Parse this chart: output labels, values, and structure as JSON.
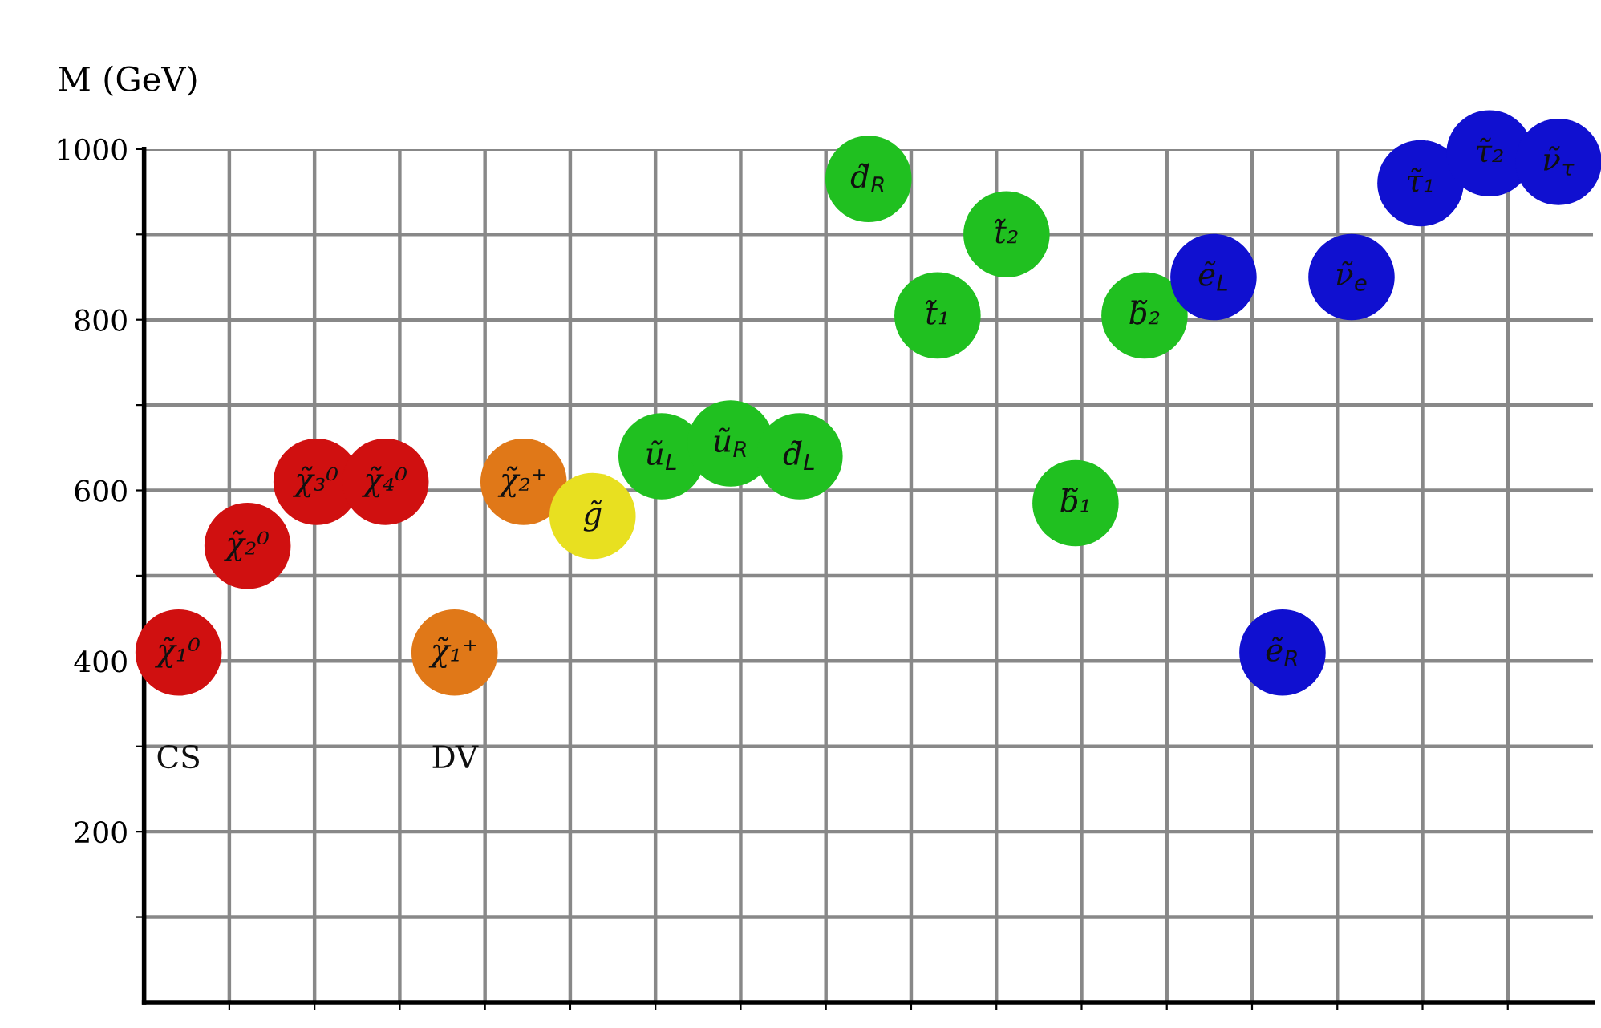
{
  "chart_data": {
    "type": "scatter",
    "ylabel": "M (GeV)",
    "categories": [
      null,
      null,
      null,
      null,
      null,
      null,
      null,
      null,
      null,
      null,
      null,
      null,
      null,
      null,
      null,
      null,
      null,
      null,
      null,
      null,
      null
    ],
    "ylim": [
      0,
      1000
    ],
    "yticks": [
      {
        "value": 100,
        "label": null
      },
      200,
      {
        "value": 300,
        "label": null
      },
      400,
      {
        "value": 500,
        "label": null
      },
      600,
      {
        "value": 700,
        "label": null
      },
      800,
      {
        "value": 900,
        "label": null
      },
      1000
    ],
    "grid": true,
    "tick_labels": "y",
    "marker": "circle",
    "series": [
      {
        "color": "#d01010",
        "values": [
          410,
          535,
          610,
          610,
          null,
          null,
          null,
          null,
          null,
          null,
          null,
          null,
          null,
          null,
          null,
          null,
          null,
          null,
          null,
          null,
          null
        ],
        "value_labels": [
          "χ̃₁⁰",
          "χ̃₂⁰",
          "χ̃₃⁰",
          "χ̃₄⁰",
          null,
          null,
          null,
          null,
          null,
          null,
          null,
          null,
          null,
          null,
          null,
          null,
          null,
          null,
          null,
          null,
          null
        ]
      },
      {
        "color": "#e07818",
        "values": [
          null,
          null,
          null,
          null,
          410,
          610,
          null,
          null,
          null,
          null,
          null,
          null,
          null,
          null,
          null,
          null,
          null,
          null,
          null,
          null,
          null
        ],
        "value_labels": [
          null,
          null,
          null,
          null,
          "χ̃₁⁺",
          "χ̃₂⁺",
          null,
          null,
          null,
          null,
          null,
          null,
          null,
          null,
          null,
          null,
          null,
          null,
          null,
          null,
          null
        ]
      },
      {
        "color": "#e8e020",
        "values": [
          null,
          null,
          null,
          null,
          null,
          null,
          570,
          null,
          null,
          null,
          null,
          null,
          null,
          null,
          null,
          null,
          null,
          null,
          null,
          null,
          null
        ],
        "value_labels": [
          null,
          null,
          null,
          null,
          null,
          null,
          "g̃",
          null,
          null,
          null,
          null,
          null,
          null,
          null,
          null,
          null,
          null,
          null,
          null,
          null,
          null
        ]
      },
      {
        "color": "#20c020",
        "values": [
          null,
          null,
          null,
          null,
          null,
          null,
          null,
          640,
          655,
          640,
          965,
          805,
          900,
          585,
          805,
          null,
          null,
          null,
          null,
          null,
          null
        ],
        "value_labels": [
          null,
          null,
          null,
          null,
          null,
          null,
          null,
          "ũ$_{L}$",
          "ũ$_{R}$",
          "d̃$_{L}$",
          "d̃$_{R}$",
          "t̃₁",
          "t̃₂",
          "b̃₁",
          "b̃₂",
          null,
          null,
          null,
          null,
          null,
          null
        ]
      },
      {
        "color": "#1010d0",
        "values": [
          null,
          null,
          null,
          null,
          null,
          null,
          null,
          null,
          null,
          null,
          null,
          null,
          null,
          null,
          null,
          850,
          410,
          850,
          960,
          995,
          985
        ],
        "value_labels": [
          null,
          null,
          null,
          null,
          null,
          null,
          null,
          null,
          null,
          null,
          null,
          null,
          null,
          null,
          null,
          "ẽ$_{L}$",
          "ẽ$_{R}$",
          "ν̃$_{e}$",
          "τ̃₁",
          "τ̃₂",
          "ν̃$_{τ}$"
        ]
      }
    ],
    "annotations": [
      "CS",
      "DV"
    ]
  }
}
